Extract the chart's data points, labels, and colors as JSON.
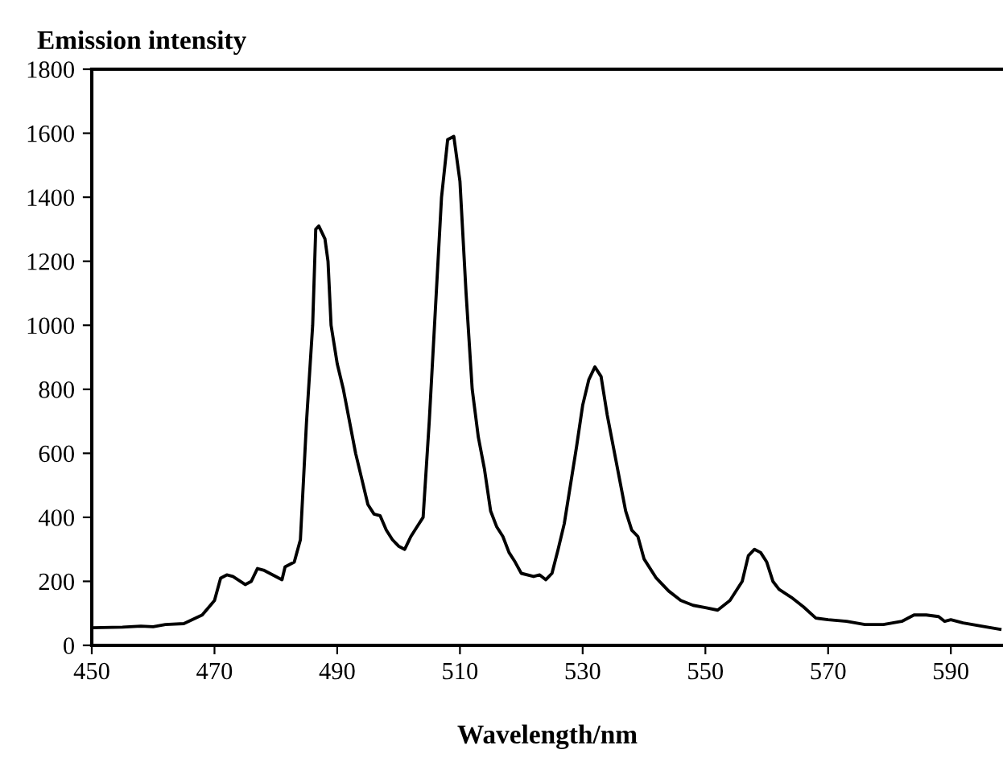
{
  "chart_data": {
    "type": "line",
    "ylabel": "Emission intensity",
    "xlabel": "Wavelength/nm",
    "xlim": [
      450,
      598.5
    ],
    "xticks": [
      450,
      470,
      490,
      510,
      530,
      550,
      570,
      590
    ],
    "ylim": [
      0,
      1800
    ],
    "yticks": [
      0,
      200,
      400,
      600,
      800,
      1000,
      1200,
      1400,
      1600,
      1800
    ],
    "grid": false,
    "legend": false,
    "marker": "none",
    "line_style": "solid",
    "series": [
      {
        "color": "#000000",
        "x": [
          450,
          455,
          458,
          460,
          462,
          465,
          468,
          470,
          471,
          472,
          473,
          475,
          476,
          477,
          478,
          480,
          481,
          481.5,
          483,
          484,
          485,
          486,
          486.5,
          487,
          488,
          488.5,
          489,
          490,
          491,
          492,
          493,
          494,
          495,
          496,
          497,
          498,
          499,
          500,
          501,
          502,
          503,
          504,
          505,
          506,
          507,
          508,
          509,
          510,
          511,
          512,
          513,
          514,
          515,
          516,
          517,
          518,
          519,
          520,
          522,
          523,
          524,
          525,
          526,
          527,
          528,
          529,
          530,
          531,
          532,
          533,
          534,
          535,
          536,
          537,
          538,
          539,
          540,
          542,
          544,
          546,
          548,
          550,
          552,
          554,
          556,
          557,
          558,
          559,
          560,
          561,
          562,
          564,
          566,
          568,
          570,
          573,
          576,
          579,
          582,
          584,
          586,
          588,
          589,
          590,
          592,
          595,
          598
        ],
        "values": [
          55,
          57,
          60,
          58,
          65,
          68,
          95,
          140,
          210,
          220,
          215,
          190,
          200,
          240,
          235,
          215,
          205,
          245,
          260,
          330,
          700,
          1000,
          1300,
          1310,
          1270,
          1200,
          1000,
          880,
          800,
          700,
          600,
          520,
          440,
          410,
          405,
          360,
          330,
          310,
          300,
          340,
          370,
          400,
          700,
          1050,
          1400,
          1580,
          1590,
          1450,
          1100,
          800,
          650,
          550,
          420,
          370,
          340,
          290,
          260,
          225,
          215,
          220,
          205,
          225,
          300,
          380,
          500,
          620,
          750,
          830,
          870,
          840,
          720,
          620,
          520,
          420,
          360,
          340,
          270,
          210,
          170,
          140,
          125,
          118,
          110,
          140,
          200,
          280,
          300,
          290,
          260,
          200,
          175,
          150,
          120,
          85,
          80,
          75,
          65,
          65,
          75,
          95,
          95,
          90,
          75,
          80,
          70,
          60,
          50
        ]
      }
    ]
  }
}
